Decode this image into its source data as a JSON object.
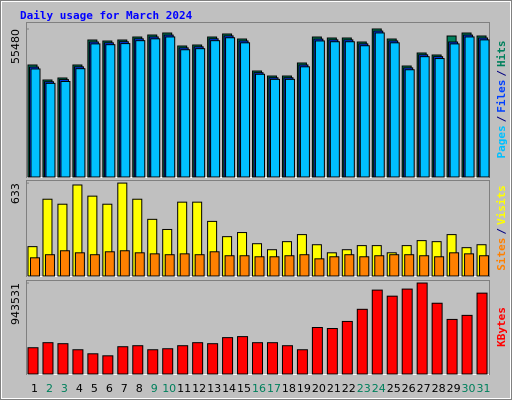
{
  "chart_data": [
    {
      "type": "bar",
      "title": "Daily usage for March 2024",
      "title_color": "#0000ff",
      "ylim": [
        0,
        58100
      ],
      "yticks": [
        55480
      ],
      "legend_separator": "/",
      "series": [
        {
          "name": "Hits",
          "color": "#00805c",
          "values": [
            41980,
            36360,
            37110,
            41980,
            51350,
            50970,
            51350,
            52470,
            53220,
            53970,
            49100,
            49470,
            52470,
            53600,
            51720,
            39730,
            37850,
            37850,
            42730,
            52470,
            52100,
            52100,
            50600,
            55480,
            51720,
            41600,
            46480,
            45730,
            52850,
            53970,
            52850
          ]
        },
        {
          "name": "Files",
          "color": "#0040ff",
          "values": [
            41200,
            35700,
            36500,
            41300,
            50600,
            50300,
            50700,
            51800,
            52500,
            53200,
            48400,
            48800,
            51800,
            52900,
            51000,
            39100,
            37200,
            37200,
            42000,
            51700,
            51400,
            51400,
            49900,
            54700,
            51000,
            40900,
            45800,
            45100,
            50600,
            53200,
            52100
          ]
        },
        {
          "name": "Pages",
          "color": "#00c0ff",
          "values": [
            40500,
            35100,
            35800,
            40600,
            49900,
            49600,
            50000,
            51100,
            51800,
            52500,
            47700,
            48100,
            51100,
            52200,
            50300,
            38500,
            36600,
            36600,
            41300,
            51000,
            50700,
            50700,
            49200,
            54000,
            50300,
            40200,
            45100,
            44400,
            49900,
            52500,
            51400
          ]
        }
      ]
    },
    {
      "type": "bar",
      "ylim": [
        0,
        654
      ],
      "yticks": [
        633
      ],
      "legend_separator": "/",
      "series": [
        {
          "name": "Visits",
          "color": "#ffff00",
          "values": [
            200,
            523,
            489,
            620,
            544,
            489,
            633,
            523,
            386,
            317,
            503,
            503,
            372,
            268,
            296,
            220,
            179,
            234,
            282,
            213,
            158,
            179,
            207,
            207,
            158,
            207,
            241,
            234,
            282,
            193,
            213
          ]
        },
        {
          "name": "Sites",
          "color": "#ff8000",
          "values": [
            124,
            145,
            172,
            158,
            145,
            165,
            172,
            158,
            151,
            145,
            151,
            145,
            165,
            138,
            138,
            131,
            131,
            138,
            145,
            117,
            131,
            145,
            131,
            138,
            145,
            145,
            138,
            131,
            158,
            151,
            138
          ]
        }
      ]
    },
    {
      "type": "bar",
      "ylim": [
        0,
        975000
      ],
      "yticks": [
        943531
      ],
      "categories": [
        "1",
        "2",
        "3",
        "4",
        "5",
        "6",
        "7",
        "8",
        "9",
        "10",
        "11",
        "12",
        "13",
        "14",
        "15",
        "16",
        "17",
        "18",
        "19",
        "20",
        "21",
        "22",
        "23",
        "24",
        "25",
        "26",
        "27",
        "28",
        "29",
        "30",
        "31"
      ],
      "category_colors": [
        "#000000",
        "#00805c",
        "#00805c",
        "#000000",
        "#000000",
        "#000000",
        "#000000",
        "#000000",
        "#00805c",
        "#00805c",
        "#000000",
        "#000000",
        "#000000",
        "#000000",
        "#000000",
        "#00805c",
        "#00805c",
        "#000000",
        "#000000",
        "#000000",
        "#000000",
        "#000000",
        "#00805c",
        "#00805c",
        "#000000",
        "#000000",
        "#000000",
        "#000000",
        "#000000",
        "#00805c",
        "#00805c"
      ],
      "series": [
        {
          "name": "KBytes",
          "color": "#ff0000",
          "values": [
            272600,
            325000,
            314500,
            251600,
            209700,
            188700,
            283100,
            293600,
            251600,
            262100,
            293600,
            325000,
            314500,
            377400,
            387900,
            325000,
            325000,
            293600,
            251600,
            482300,
            471800,
            545200,
            671000,
            870200,
            807300,
            880700,
            943531,
            733900,
            566100,
            608100,
            838700
          ]
        }
      ]
    }
  ]
}
